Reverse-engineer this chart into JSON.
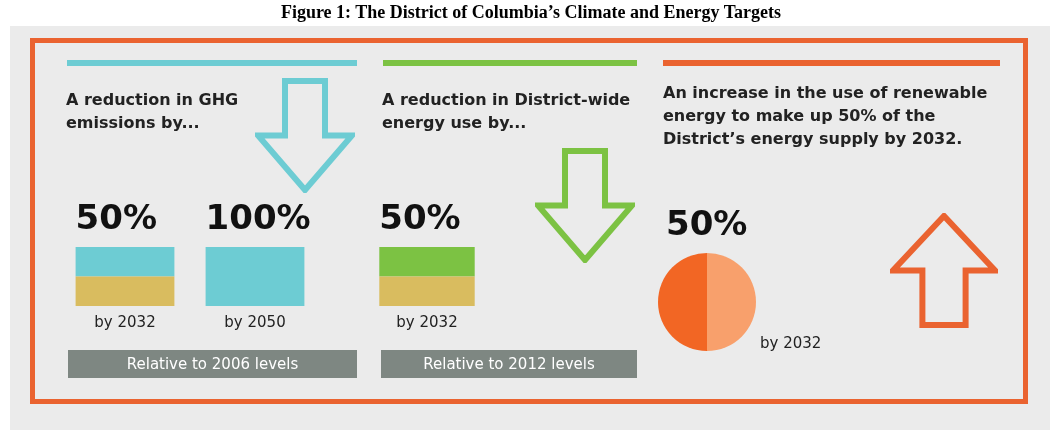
{
  "chart_data": [
    {
      "type": "bar",
      "title": "Figure 1: The District of Columbia’s Climate and Energy Targets",
      "subtitle": "A reduction in GHG emissions by...",
      "categories": [
        "by 2032",
        "by 2050"
      ],
      "stacked": true,
      "ylim": [
        0,
        100
      ],
      "tick_labels": "x",
      "series": [
        {
          "color": "#d9bc5f",
          "values": [
            50,
            0
          ]
        },
        {
          "color": "#6dccd3",
          "values": [
            50,
            100
          ],
          "value_labels": [
            "50%",
            "100%"
          ]
        }
      ],
      "annotations": [
        "Relative to 2006 levels"
      ]
    },
    {
      "type": "bar",
      "title": "A reduction in District-wide energy use by...",
      "categories": [
        "by 2032"
      ],
      "stacked": true,
      "ylim": [
        0,
        100
      ],
      "tick_labels": "x",
      "series": [
        {
          "color": "#d9bc5f",
          "values": [
            50
          ]
        },
        {
          "color": "#7cc243",
          "values": [
            50
          ],
          "value_labels": [
            "50%"
          ]
        }
      ],
      "annotations": [
        "Relative to 2012 levels"
      ]
    },
    {
      "type": "pie",
      "title": "An increase in the use of renewable energy to make up 50% of the District’s energy supply by 2032.",
      "categories": [
        null,
        null
      ],
      "values": [
        50,
        50
      ],
      "colors": [
        "#f8a06c",
        "#f26624"
      ],
      "value_labels": [
        "50%",
        null
      ],
      "annotations": [
        "by 2032"
      ]
    }
  ]
}
